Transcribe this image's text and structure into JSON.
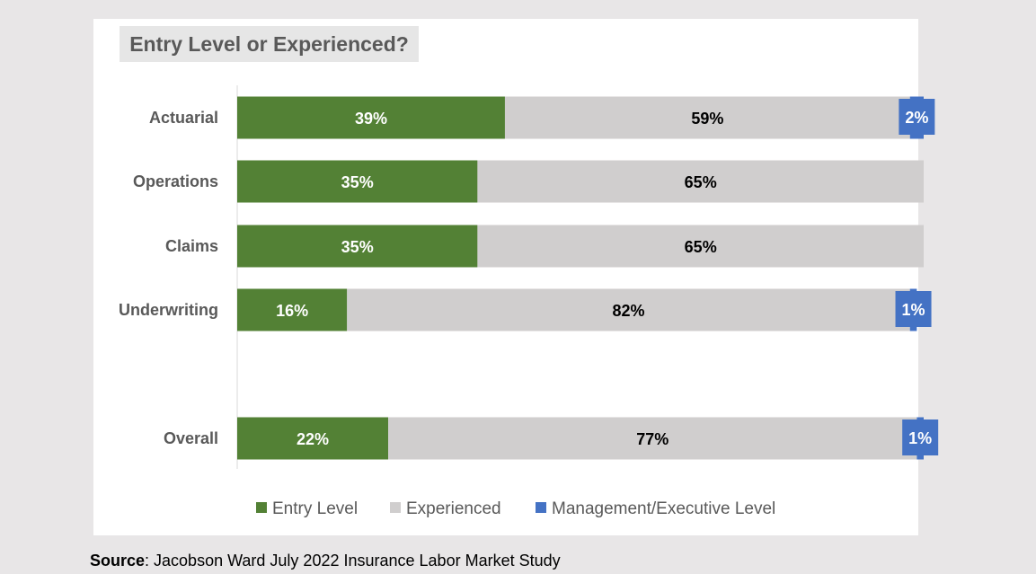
{
  "chart_data": {
    "type": "bar",
    "orientation": "horizontal",
    "stacked": true,
    "title": "Entry Level or Experienced?",
    "categories": [
      "Actuarial",
      "Operations",
      "Claims",
      "Underwriting",
      "Overall"
    ],
    "series": [
      {
        "name": "Entry Level",
        "color": "#538135",
        "values": [
          39,
          35,
          35,
          16,
          22
        ],
        "labels": [
          "39%",
          "35%",
          "35%",
          "16%",
          "22%"
        ]
      },
      {
        "name": "Experienced",
        "color": "#d0cece",
        "values": [
          59,
          65,
          65,
          82,
          77
        ],
        "labels": [
          "59%",
          "65%",
          "65%",
          "82%",
          "77%"
        ]
      },
      {
        "name": "Management/Executive Level",
        "color": "#4472c4",
        "values": [
          2,
          0,
          0,
          1,
          1
        ],
        "labels": [
          "2%",
          "",
          "",
          "1%",
          "1%"
        ]
      }
    ],
    "xlim": [
      0,
      100
    ],
    "legend": "bottom",
    "grid": false
  },
  "source": {
    "label": "Source",
    "text": ":  Jacobson Ward July 2022 Insurance Labor Market Study"
  }
}
